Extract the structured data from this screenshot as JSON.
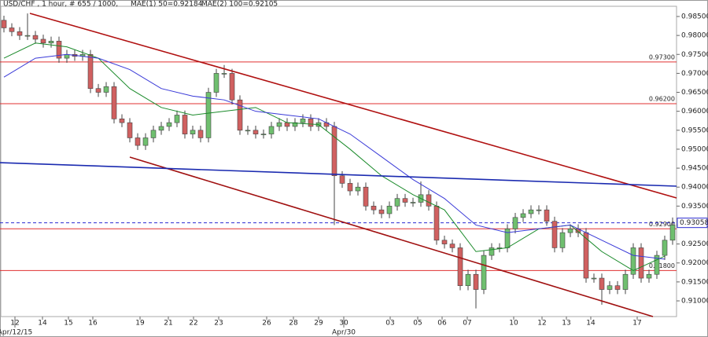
{
  "chart_data": {
    "type": "candlestick",
    "title": "USD/CHF , 1 hour, # 655 / 1000,",
    "indicator_labels": [
      {
        "text": "MAE(1) 50=0.92184",
        "color": "#1a8a2a"
      },
      {
        "text": "MAE(2) 100=0.92105",
        "color": "#2a2ad0"
      }
    ],
    "open": [
      0.984,
      0.982,
      0.981,
      0.98,
      0.98,
      0.979,
      0.978,
      0.9785,
      0.974,
      0.975,
      0.9745,
      0.975,
      0.966,
      0.965,
      0.9665,
      0.958,
      0.957,
      0.953,
      0.951,
      0.953,
      0.955,
      0.956,
      0.957,
      0.959,
      0.954,
      0.955,
      0.953,
      0.965,
      0.97,
      0.97,
      0.963,
      0.955,
      0.955,
      0.954,
      0.954,
      0.956,
      0.957,
      0.956,
      0.957,
      0.958,
      0.956,
      0.957,
      0.956,
      0.943,
      0.941,
      0.939,
      0.94,
      0.935,
      0.934,
      0.933,
      0.935,
      0.937,
      0.936,
      0.936,
      0.938,
      0.935,
      0.926,
      0.925,
      0.924,
      0.914,
      0.917,
      0.913,
      0.922,
      0.924,
      0.924,
      0.929,
      0.932,
      0.933,
      0.934,
      0.934,
      0.931,
      0.924,
      0.928,
      0.929,
      0.928,
      0.916,
      0.916,
      0.913,
      0.914,
      0.913,
      0.917,
      0.924,
      0.916,
      0.917,
      0.922,
      0.926
    ],
    "high": [
      0.9852,
      0.9832,
      0.9822,
      0.9858,
      0.9812,
      0.9802,
      0.9797,
      0.9797,
      0.9762,
      0.9762,
      0.9762,
      0.9762,
      0.9672,
      0.9677,
      0.9677,
      0.9592,
      0.9582,
      0.9542,
      0.9542,
      0.9562,
      0.9572,
      0.9582,
      0.9602,
      0.9602,
      0.9562,
      0.9562,
      0.9662,
      0.9712,
      0.9722,
      0.9712,
      0.9642,
      0.9562,
      0.9562,
      0.9552,
      0.9572,
      0.9582,
      0.9582,
      0.9582,
      0.9592,
      0.9592,
      0.9582,
      0.9582,
      0.9572,
      0.9442,
      0.9422,
      0.9412,
      0.9412,
      0.9362,
      0.9352,
      0.9362,
      0.9382,
      0.9382,
      0.9372,
      0.9415,
      0.9392,
      0.9362,
      0.9272,
      0.9262,
      0.9252,
      0.9182,
      0.9182,
      0.9232,
      0.9252,
      0.9252,
      0.9302,
      0.9332,
      0.9342,
      0.9352,
      0.9352,
      0.9352,
      0.9322,
      0.9292,
      0.9302,
      0.9302,
      0.9292,
      0.9172,
      0.9172,
      0.9152,
      0.9152,
      0.9182,
      0.9252,
      0.9252,
      0.9182,
      0.9232,
      0.9272,
      0.932
    ],
    "low": [
      0.9808,
      0.9798,
      0.9788,
      0.9788,
      0.9778,
      0.9768,
      0.9768,
      0.9728,
      0.9728,
      0.9733,
      0.9733,
      0.9648,
      0.9638,
      0.9638,
      0.9568,
      0.9558,
      0.9518,
      0.9498,
      0.9498,
      0.9518,
      0.9538,
      0.9548,
      0.9558,
      0.9528,
      0.9528,
      0.9518,
      0.9518,
      0.9638,
      0.9688,
      0.9618,
      0.9538,
      0.9538,
      0.9528,
      0.9528,
      0.9528,
      0.9548,
      0.9548,
      0.9548,
      0.9558,
      0.9548,
      0.9548,
      0.9548,
      0.93,
      0.9398,
      0.9378,
      0.9378,
      0.9338,
      0.9328,
      0.9318,
      0.9318,
      0.9338,
      0.9348,
      0.9348,
      0.9348,
      0.9338,
      0.9248,
      0.9238,
      0.9228,
      0.9128,
      0.9128,
      0.908,
      0.9118,
      0.9208,
      0.9228,
      0.9228,
      0.9278,
      0.9308,
      0.9318,
      0.9328,
      0.9298,
      0.9228,
      0.9228,
      0.9268,
      0.9268,
      0.9148,
      0.9148,
      0.909,
      0.9118,
      0.9118,
      0.9118,
      0.9158,
      0.9148,
      0.9148,
      0.9158,
      0.9208,
      0.9248
    ],
    "close": [
      0.982,
      0.981,
      0.98,
      0.98,
      0.979,
      0.978,
      0.9785,
      0.974,
      0.975,
      0.9745,
      0.975,
      0.966,
      0.965,
      0.9665,
      0.958,
      0.957,
      0.953,
      0.951,
      0.953,
      0.955,
      0.956,
      0.957,
      0.959,
      0.954,
      0.955,
      0.953,
      0.965,
      0.97,
      0.97,
      0.963,
      0.955,
      0.955,
      0.954,
      0.954,
      0.956,
      0.957,
      0.956,
      0.957,
      0.958,
      0.956,
      0.957,
      0.956,
      0.943,
      0.941,
      0.939,
      0.94,
      0.935,
      0.934,
      0.933,
      0.935,
      0.937,
      0.936,
      0.936,
      0.938,
      0.935,
      0.926,
      0.925,
      0.924,
      0.914,
      0.917,
      0.913,
      0.922,
      0.924,
      0.924,
      0.929,
      0.932,
      0.933,
      0.934,
      0.934,
      0.931,
      0.924,
      0.928,
      0.929,
      0.928,
      0.916,
      0.916,
      0.913,
      0.914,
      0.913,
      0.917,
      0.924,
      0.916,
      0.917,
      0.922,
      0.926,
      0.93
    ],
    "up_color": "#6fbf6f",
    "down_color": "#d06060",
    "wick_color": "#444444",
    "moving_averages": [
      {
        "color": "#1a8a2a",
        "x": [
          0,
          4,
          8,
          12,
          16,
          20,
          24,
          28,
          32,
          36,
          40,
          44,
          48,
          52,
          56,
          60,
          64,
          68,
          72,
          76,
          80,
          84
        ],
        "values": [
          0.974,
          0.978,
          0.977,
          0.974,
          0.966,
          0.961,
          0.959,
          0.96,
          0.961,
          0.957,
          0.9565,
          0.95,
          0.943,
          0.938,
          0.934,
          0.923,
          0.924,
          0.929,
          0.93,
          0.923,
          0.918,
          0.9218
        ]
      },
      {
        "color": "#3a3ad8",
        "x": [
          0,
          4,
          8,
          12,
          16,
          20,
          24,
          28,
          32,
          36,
          40,
          44,
          48,
          52,
          56,
          60,
          64,
          68,
          72,
          76,
          80,
          84
        ],
        "values": [
          0.969,
          0.974,
          0.975,
          0.974,
          0.971,
          0.966,
          0.964,
          0.963,
          0.96,
          0.959,
          0.958,
          0.954,
          0.948,
          0.942,
          0.937,
          0.93,
          0.928,
          0.929,
          0.93,
          0.926,
          0.922,
          0.921
        ]
      }
    ],
    "trend_lines": [
      {
        "color": "#b01010",
        "x": [
          3.3,
          85.5
        ],
        "y": [
          0.98583,
          0.93714
        ]
      },
      {
        "color": "#a01010",
        "x": [
          16,
          82.5
        ],
        "y": [
          0.94791,
          0.90586
        ]
      },
      {
        "color": "#1a2ab0",
        "x": [
          -0.5,
          85.5
        ],
        "y": [
          0.94646,
          0.94025
        ]
      }
    ],
    "levels": [
      {
        "value": 0.973,
        "label": "0.97300"
      },
      {
        "value": 0.962,
        "label": "0.96200"
      },
      {
        "value": 0.929,
        "label": "0.92900"
      },
      {
        "value": 0.918,
        "label": "0.91800"
      }
    ],
    "level_color": "#e03030",
    "current_price": {
      "value": 0.93058,
      "label": "0.93058"
    },
    "current_color": "#2a2ad0",
    "xlim": [
      -0.5,
      85.5
    ],
    "ylim": [
      0.90586,
      0.98769
    ],
    "yticks": [
      {
        "value": 0.985,
        "label": "0.98500"
      },
      {
        "value": 0.98,
        "label": "0.98000"
      },
      {
        "value": 0.975,
        "label": "0.97500"
      },
      {
        "value": 0.97,
        "label": "0.97000"
      },
      {
        "value": 0.965,
        "label": "0.96500"
      },
      {
        "value": 0.96,
        "label": "0.96000"
      },
      {
        "value": 0.955,
        "label": "0.95500"
      },
      {
        "value": 0.95,
        "label": "0.95000"
      },
      {
        "value": 0.945,
        "label": "0.94500"
      },
      {
        "value": 0.94,
        "label": "0.94000"
      },
      {
        "value": 0.935,
        "label": "0.93500"
      },
      {
        "value": 0.93,
        "label": "0.93000"
      },
      {
        "value": 0.925,
        "label": "0.92500"
      },
      {
        "value": 0.92,
        "label": "0.92000"
      },
      {
        "value": 0.915,
        "label": "0.91500"
      },
      {
        "value": 0.91,
        "label": "0.91000"
      }
    ],
    "xticks": [
      {
        "value": 1.4,
        "label": "12"
      },
      {
        "value": 4.9,
        "label": "14"
      },
      {
        "value": 8.2,
        "label": "15"
      },
      {
        "value": 11.3,
        "label": "16"
      },
      {
        "value": 17.3,
        "label": "19"
      },
      {
        "value": 20.9,
        "label": "21"
      },
      {
        "value": 24.1,
        "label": "22"
      },
      {
        "value": 27.3,
        "label": "23"
      },
      {
        "value": 33.4,
        "label": "26"
      },
      {
        "value": 36.8,
        "label": "28"
      },
      {
        "value": 40,
        "label": "29"
      },
      {
        "value": 43.2,
        "label": "30"
      },
      {
        "value": 49.1,
        "label": "03"
      },
      {
        "value": 52.6,
        "label": "05"
      },
      {
        "value": 55.7,
        "label": "06"
      },
      {
        "value": 58.9,
        "label": "07"
      },
      {
        "value": 64.8,
        "label": "10"
      },
      {
        "value": 68.4,
        "label": "12"
      },
      {
        "value": 71.5,
        "label": "13"
      },
      {
        "value": 74.6,
        "label": "14"
      },
      {
        "value": 80.5,
        "label": "17"
      }
    ],
    "xticks_major": [
      {
        "value": 1.4,
        "label": "Apr/12/15"
      },
      {
        "value": 43.2,
        "label": "Apr/30"
      }
    ]
  }
}
